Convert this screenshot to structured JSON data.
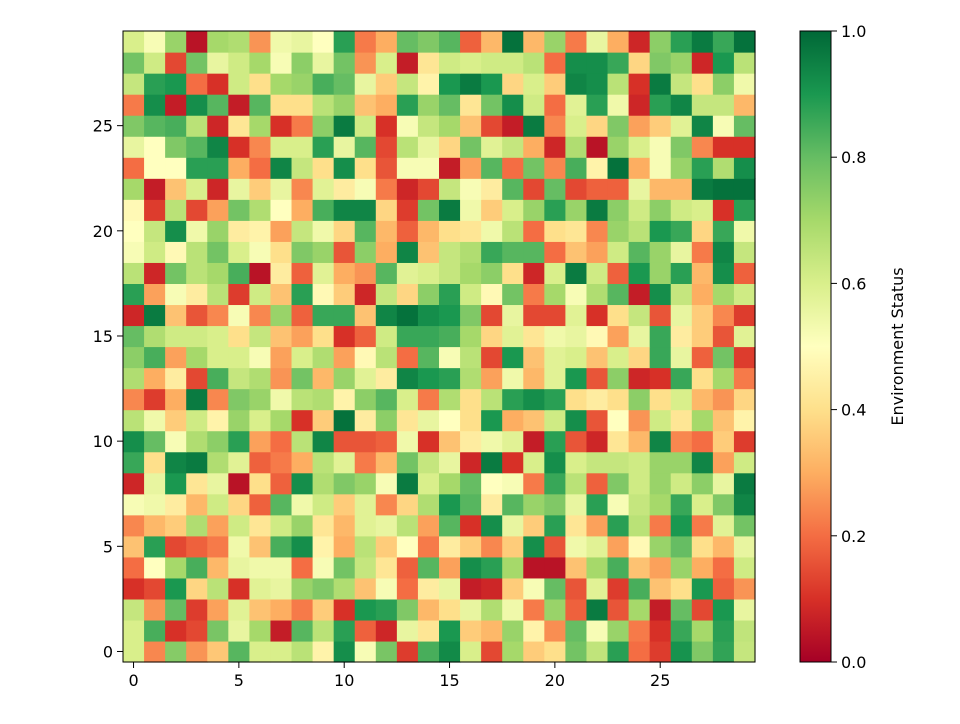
{
  "chart_data": {
    "type": "heatmap",
    "title": "",
    "xlabel": "",
    "ylabel": "",
    "rows": 30,
    "cols": 30,
    "x_range": [
      -0.5,
      29.5
    ],
    "y_range": [
      -0.5,
      29.5
    ],
    "origin": "lower",
    "x_ticks": [
      0,
      5,
      10,
      15,
      20,
      25
    ],
    "y_ticks": [
      0,
      5,
      10,
      15,
      20,
      25
    ],
    "colormap": "RdYlGn",
    "colormap_stops": [
      "#a50026",
      "#d73027",
      "#f46d43",
      "#fdae61",
      "#fee08b",
      "#ffffbf",
      "#d9ef8b",
      "#a6d96a",
      "#66bd63",
      "#1a9850",
      "#006837"
    ],
    "vmin": 0.0,
    "vmax": 1.0,
    "colorbar": {
      "label": "Environment Status",
      "ticks": [
        "0.0",
        "0.2",
        "0.4",
        "0.6",
        "0.8",
        "1.0"
      ]
    },
    "values": [
      [
        0.6,
        0.24,
        0.75,
        0.26,
        0.35,
        0.82,
        0.6,
        0.6,
        0.66,
        0.46,
        0.92,
        0.52,
        0.77,
        0.12,
        0.84,
        0.93,
        0.6,
        0.14,
        0.7,
        0.36,
        0.4,
        0.78,
        0.65,
        0.88,
        0.2,
        0.12,
        0.91,
        0.76,
        0.87,
        0.64
      ],
      [
        0.6,
        0.84,
        0.1,
        0.14,
        0.77,
        0.56,
        0.7,
        0.06,
        0.82,
        0.66,
        0.88,
        0.18,
        0.08,
        0.56,
        0.42,
        0.9,
        0.36,
        0.32,
        0.72,
        0.46,
        0.25,
        0.8,
        0.52,
        0.72,
        0.22,
        0.1,
        0.86,
        0.7,
        0.88,
        0.65
      ],
      [
        0.64,
        0.26,
        0.8,
        0.12,
        0.28,
        0.58,
        0.34,
        0.3,
        0.22,
        0.36,
        0.1,
        0.9,
        0.88,
        0.76,
        0.32,
        0.4,
        0.56,
        0.68,
        0.54,
        0.22,
        0.72,
        0.18,
        0.96,
        0.16,
        0.7,
        0.06,
        0.8,
        0.14,
        0.9,
        0.56
      ],
      [
        0.1,
        0.14,
        0.9,
        0.38,
        0.66,
        0.1,
        0.58,
        0.56,
        0.72,
        0.76,
        0.68,
        0.34,
        0.52,
        0.2,
        0.44,
        0.56,
        0.06,
        0.08,
        0.36,
        0.52,
        0.8,
        0.16,
        0.58,
        0.12,
        0.84,
        0.34,
        0.4,
        0.9,
        0.18,
        0.26
      ],
      [
        0.2,
        0.5,
        0.7,
        0.84,
        0.32,
        0.56,
        0.54,
        0.54,
        0.2,
        0.52,
        0.78,
        0.64,
        0.42,
        0.18,
        0.82,
        0.28,
        0.92,
        0.88,
        0.7,
        0.04,
        0.04,
        0.34,
        0.7,
        0.84,
        0.34,
        0.28,
        0.72,
        0.3,
        0.2,
        0.62
      ],
      [
        0.34,
        0.88,
        0.14,
        0.18,
        0.22,
        0.54,
        0.34,
        0.84,
        0.92,
        0.46,
        0.3,
        0.66,
        0.36,
        0.5,
        0.22,
        0.44,
        0.36,
        0.24,
        0.36,
        0.92,
        0.16,
        0.54,
        0.58,
        0.28,
        0.48,
        0.72,
        0.8,
        0.4,
        0.32,
        0.56
      ],
      [
        0.24,
        0.32,
        0.36,
        0.68,
        0.28,
        0.62,
        0.42,
        0.62,
        0.72,
        0.42,
        0.32,
        0.58,
        0.56,
        0.66,
        0.28,
        0.82,
        0.1,
        0.92,
        0.56,
        0.36,
        0.88,
        0.42,
        0.28,
        0.88,
        0.66,
        0.22,
        0.9,
        0.22,
        0.58,
        0.78
      ],
      [
        0.52,
        0.54,
        0.44,
        0.32,
        0.62,
        0.38,
        0.18,
        0.82,
        0.54,
        0.62,
        0.36,
        0.58,
        0.24,
        0.38,
        0.68,
        0.9,
        0.82,
        0.44,
        0.82,
        0.72,
        0.76,
        0.56,
        0.88,
        0.52,
        0.64,
        0.7,
        0.86,
        0.6,
        0.76,
        0.94
      ],
      [
        0.08,
        0.56,
        0.9,
        0.42,
        0.56,
        0.04,
        0.4,
        0.18,
        0.92,
        0.68,
        0.76,
        0.72,
        0.52,
        0.96,
        0.6,
        0.7,
        0.8,
        0.5,
        0.52,
        0.22,
        0.86,
        0.66,
        0.18,
        0.76,
        0.62,
        0.72,
        0.62,
        0.74,
        0.56,
        0.96
      ],
      [
        0.86,
        0.4,
        0.94,
        0.96,
        0.68,
        0.58,
        0.18,
        0.22,
        0.3,
        0.66,
        0.58,
        0.22,
        0.32,
        0.78,
        0.64,
        0.56,
        0.08,
        0.96,
        0.1,
        0.6,
        0.92,
        0.6,
        0.64,
        0.64,
        0.62,
        0.72,
        0.72,
        0.94,
        0.28,
        0.62
      ],
      [
        0.92,
        0.8,
        0.52,
        0.68,
        0.74,
        0.88,
        0.28,
        0.2,
        0.66,
        0.94,
        0.16,
        0.16,
        0.18,
        0.54,
        0.1,
        0.34,
        0.44,
        0.54,
        0.58,
        0.06,
        0.88,
        0.16,
        0.08,
        0.42,
        0.32,
        0.94,
        0.24,
        0.2,
        0.36,
        0.12
      ],
      [
        0.66,
        0.54,
        0.36,
        0.62,
        0.46,
        0.72,
        0.6,
        0.7,
        0.1,
        0.36,
        0.98,
        0.44,
        0.74,
        0.42,
        0.56,
        0.5,
        0.4,
        0.9,
        0.3,
        0.34,
        0.62,
        0.92,
        0.16,
        0.5,
        0.26,
        0.62,
        0.42,
        0.7,
        0.34,
        0.46
      ],
      [
        0.24,
        0.12,
        0.3,
        0.96,
        0.24,
        0.76,
        0.72,
        0.54,
        0.66,
        0.68,
        0.46,
        0.74,
        0.82,
        0.6,
        0.22,
        0.68,
        0.4,
        0.66,
        0.88,
        0.92,
        0.88,
        0.4,
        0.44,
        0.4,
        0.74,
        0.4,
        0.6,
        0.32,
        0.26,
        0.38
      ],
      [
        0.68,
        0.3,
        0.44,
        0.14,
        0.84,
        0.64,
        0.68,
        0.26,
        0.78,
        0.32,
        0.72,
        0.58,
        0.44,
        0.94,
        0.9,
        0.88,
        0.68,
        0.28,
        0.54,
        0.32,
        0.58,
        0.9,
        0.16,
        0.74,
        0.08,
        0.1,
        0.86,
        0.4,
        0.7,
        0.22
      ],
      [
        0.74,
        0.84,
        0.28,
        0.7,
        0.6,
        0.6,
        0.52,
        0.28,
        0.6,
        0.68,
        0.28,
        0.48,
        0.66,
        0.2,
        0.82,
        0.52,
        0.66,
        0.14,
        0.9,
        0.34,
        0.58,
        0.6,
        0.34,
        0.6,
        0.38,
        0.86,
        0.56,
        0.18,
        0.78,
        0.12
      ],
      [
        0.8,
        0.68,
        0.62,
        0.62,
        0.6,
        0.4,
        0.64,
        0.34,
        0.28,
        0.4,
        0.1,
        0.18,
        0.62,
        0.86,
        0.86,
        0.84,
        0.7,
        0.38,
        0.58,
        0.42,
        0.54,
        0.56,
        0.48,
        0.28,
        0.56,
        0.86,
        0.44,
        0.36,
        0.16,
        0.58
      ],
      [
        0.08,
        0.96,
        0.34,
        0.16,
        0.24,
        0.52,
        0.24,
        0.72,
        0.18,
        0.86,
        0.86,
        0.34,
        0.94,
        0.98,
        0.92,
        0.9,
        0.76,
        0.14,
        0.56,
        0.14,
        0.14,
        0.58,
        0.1,
        0.4,
        0.64,
        0.16,
        0.56,
        0.36,
        0.24,
        0.12
      ],
      [
        0.88,
        0.28,
        0.52,
        0.44,
        0.66,
        0.12,
        0.62,
        0.34,
        0.88,
        0.48,
        0.36,
        0.08,
        0.64,
        0.38,
        0.74,
        0.88,
        0.62,
        0.48,
        0.78,
        0.22,
        0.7,
        0.52,
        0.68,
        0.82,
        0.06,
        0.92,
        0.64,
        0.3,
        0.7,
        0.62
      ],
      [
        0.66,
        0.08,
        0.78,
        0.66,
        0.7,
        0.84,
        0.04,
        0.44,
        0.18,
        0.58,
        0.3,
        0.26,
        0.82,
        0.58,
        0.6,
        0.64,
        0.7,
        0.74,
        0.4,
        0.08,
        0.6,
        0.96,
        0.62,
        0.18,
        0.9,
        0.72,
        0.88,
        0.32,
        0.92,
        0.18
      ],
      [
        0.52,
        0.62,
        0.48,
        0.66,
        0.78,
        0.6,
        0.52,
        0.4,
        0.76,
        0.72,
        0.16,
        0.74,
        0.3,
        0.94,
        0.34,
        0.64,
        0.68,
        0.86,
        0.82,
        0.82,
        0.2,
        0.34,
        0.28,
        0.62,
        0.82,
        0.72,
        0.56,
        0.22,
        0.94,
        0.64
      ],
      [
        0.5,
        0.64,
        0.92,
        0.54,
        0.72,
        0.44,
        0.46,
        0.28,
        0.64,
        0.54,
        0.38,
        0.82,
        0.32,
        0.18,
        0.32,
        0.4,
        0.42,
        0.54,
        0.66,
        0.2,
        0.4,
        0.42,
        0.24,
        0.72,
        0.66,
        0.9,
        0.86,
        0.38,
        0.86,
        0.54
      ],
      [
        0.48,
        0.12,
        0.66,
        0.14,
        0.28,
        0.78,
        0.68,
        0.5,
        0.3,
        0.84,
        0.94,
        0.94,
        0.38,
        0.12,
        0.78,
        0.96,
        0.54,
        0.36,
        0.6,
        0.72,
        0.88,
        0.72,
        0.96,
        0.74,
        0.62,
        0.74,
        0.62,
        0.6,
        0.1,
        0.88
      ],
      [
        0.7,
        0.06,
        0.34,
        0.6,
        0.08,
        0.56,
        0.36,
        0.56,
        0.24,
        0.58,
        0.44,
        0.52,
        0.22,
        0.08,
        0.14,
        0.64,
        0.52,
        0.44,
        0.82,
        0.14,
        0.8,
        0.14,
        0.18,
        0.18,
        0.56,
        0.32,
        0.32,
        0.96,
        0.98,
        0.98
      ],
      [
        0.2,
        0.5,
        0.5,
        0.88,
        0.88,
        0.3,
        0.2,
        0.94,
        0.64,
        0.4,
        0.92,
        0.4,
        0.16,
        0.52,
        0.52,
        0.06,
        0.28,
        0.82,
        0.2,
        0.78,
        0.24,
        0.84,
        0.46,
        0.98,
        0.3,
        0.52,
        0.72,
        0.88,
        0.68,
        0.92
      ],
      [
        0.56,
        0.5,
        0.76,
        0.82,
        0.94,
        0.1,
        0.24,
        0.6,
        0.6,
        0.88,
        0.56,
        0.82,
        0.14,
        0.66,
        0.56,
        0.38,
        0.78,
        0.58,
        0.64,
        0.3,
        0.08,
        0.68,
        0.04,
        0.72,
        0.6,
        0.52,
        0.76,
        0.24,
        0.1,
        0.1
      ],
      [
        0.76,
        0.82,
        0.84,
        0.66,
        0.08,
        0.42,
        0.7,
        0.1,
        0.22,
        0.74,
        0.96,
        0.62,
        0.1,
        0.52,
        0.64,
        0.7,
        0.34,
        0.14,
        0.06,
        0.96,
        0.24,
        0.6,
        0.38,
        0.76,
        0.28,
        0.36,
        0.58,
        0.94,
        0.52,
        0.8
      ],
      [
        0.22,
        0.92,
        0.06,
        0.92,
        0.82,
        0.06,
        0.82,
        0.4,
        0.4,
        0.66,
        0.72,
        0.34,
        0.3,
        0.88,
        0.72,
        0.8,
        0.42,
        0.78,
        0.92,
        0.62,
        0.2,
        0.58,
        0.88,
        0.54,
        0.08,
        0.88,
        0.94,
        0.64,
        0.64,
        0.32
      ],
      [
        0.64,
        0.88,
        0.9,
        0.2,
        0.1,
        0.62,
        0.4,
        0.7,
        0.72,
        0.84,
        0.8,
        0.56,
        0.36,
        0.64,
        0.46,
        0.9,
        0.96,
        0.9,
        0.38,
        0.6,
        0.36,
        0.94,
        0.92,
        0.66,
        0.1,
        0.96,
        0.64,
        0.4,
        0.74,
        0.54
      ],
      [
        0.78,
        0.62,
        0.14,
        0.78,
        0.56,
        0.62,
        0.7,
        0.52,
        0.74,
        0.56,
        0.78,
        0.26,
        0.6,
        0.06,
        0.42,
        0.62,
        0.6,
        0.62,
        0.62,
        0.66,
        0.2,
        0.92,
        0.92,
        0.86,
        0.38,
        0.76,
        0.72,
        0.08,
        0.9,
        0.66
      ],
      [
        0.6,
        0.52,
        0.72,
        0.04,
        0.7,
        0.68,
        0.26,
        0.54,
        0.56,
        0.5,
        0.88,
        0.22,
        0.3,
        0.8,
        0.76,
        0.82,
        0.18,
        0.32,
        0.98,
        0.32,
        0.72,
        0.22,
        0.56,
        0.3,
        0.08,
        0.74,
        0.88,
        0.96,
        0.86,
        0.98
      ]
    ]
  }
}
